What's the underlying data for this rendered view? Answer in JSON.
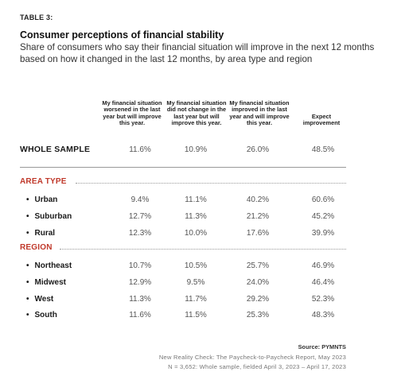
{
  "table_label": "TABLE 3:",
  "title": "Consumer perceptions of financial stability",
  "subtitle": "Share of consumers who say their financial situation will improve in the next 12 months based on how it changed in the last 12 months, by area type and region",
  "columns": [
    "My financial situation worsened in the last year but will improve this year.",
    "My financial situation did not change in the last year but will improve this year.",
    "My financial situation improved in the last year and will improve this year.",
    "Expect improvement"
  ],
  "whole_sample": {
    "label": "WHOLE SAMPLE",
    "values": [
      "11.6%",
      "10.9%",
      "26.0%",
      "48.5%"
    ]
  },
  "area_type": {
    "heading": "AREA TYPE",
    "rows": [
      {
        "label": "Urban",
        "values": [
          "9.4%",
          "11.1%",
          "40.2%",
          "60.6%"
        ]
      },
      {
        "label": "Suburban",
        "values": [
          "12.7%",
          "11.3%",
          "21.2%",
          "45.2%"
        ]
      },
      {
        "label": "Rural",
        "values": [
          "12.3%",
          "10.0%",
          "17.6%",
          "39.9%"
        ]
      }
    ]
  },
  "region": {
    "heading": "REGION",
    "rows": [
      {
        "label": "Northeast",
        "values": [
          "10.7%",
          "10.5%",
          "25.7%",
          "46.9%"
        ]
      },
      {
        "label": "Midwest",
        "values": [
          "12.9%",
          "9.5%",
          "24.0%",
          "46.4%"
        ]
      },
      {
        "label": "West",
        "values": [
          "11.3%",
          "11.7%",
          "29.2%",
          "52.3%"
        ]
      },
      {
        "label": "South",
        "values": [
          "11.6%",
          "11.5%",
          "25.3%",
          "48.3%"
        ]
      }
    ]
  },
  "source": "Source: PYMNTS",
  "notes": [
    "New Reality Check: The Paycheck-to-Paycheck Report, May 2023",
    "N = 3,652: Whole sample, fielded April 3, 2023 – April 17, 2023"
  ],
  "colors": {
    "section_heading": "#c0392b",
    "value_text": "#555555"
  }
}
